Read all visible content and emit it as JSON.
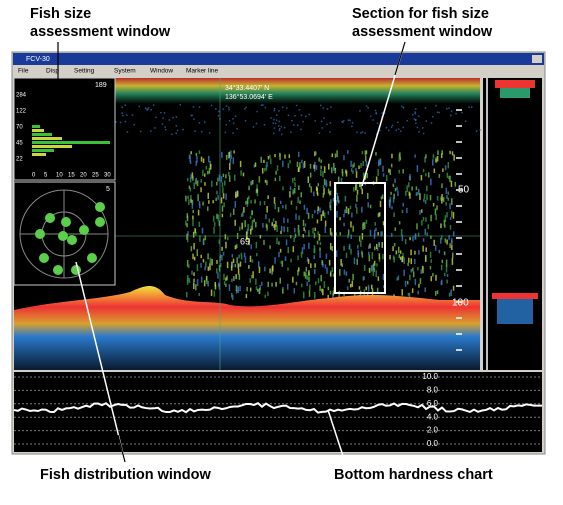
{
  "annotations": {
    "fish_size_window": [
      "Fish size",
      "assessment window"
    ],
    "section_window": [
      "Section for fish size",
      "assessment window"
    ],
    "distribution_window": "Fish distribution window",
    "hardness_chart": "Bottom hardness chart"
  },
  "window": {
    "title": "FCV-30",
    "menu": [
      "File",
      "Disp",
      "Setting",
      "System",
      "Window",
      "Marker line"
    ],
    "position": [
      "34°33.4407' N",
      "136°53.0694' E"
    ],
    "depth_labels": [
      "50",
      "100"
    ],
    "section_depth": "69",
    "histogram": {
      "count": "189",
      "size_labels": [
        "284",
        "122",
        "70",
        "45",
        "22"
      ],
      "x_labels": [
        "0",
        "5",
        "10",
        "15",
        "20",
        "25",
        "30"
      ]
    },
    "distribution": {
      "count": "5"
    },
    "hardness_labels": [
      "10.0",
      "8.0",
      "6.0",
      "4.0",
      "2.0",
      "0.0"
    ]
  }
}
